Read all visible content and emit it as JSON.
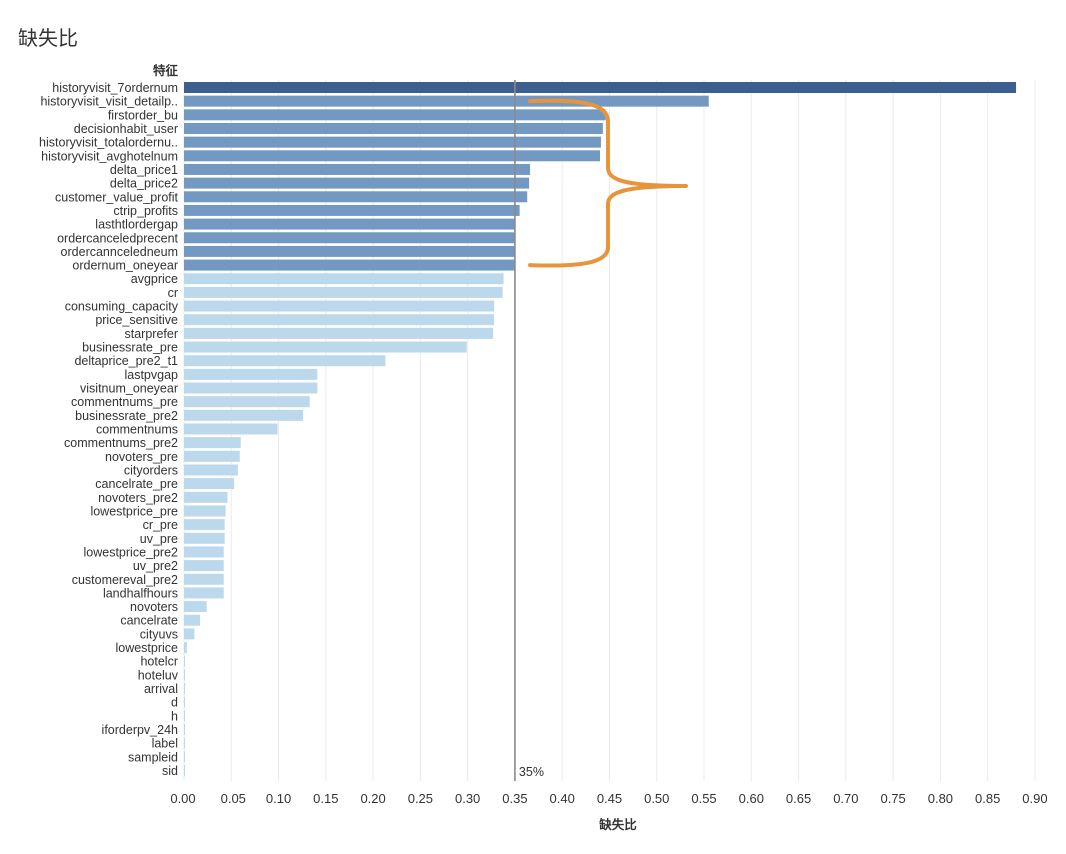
{
  "page_title": "缺失比",
  "colors": {
    "top_bar": "#3d5f8f",
    "high_bar": "#7399c3",
    "low_bar": "#bcd8ec",
    "grid": "#ececec",
    "ref_line": "#8a8a8a",
    "annotation": "#e8943a",
    "text": "#333333"
  },
  "chart_data": {
    "type": "bar",
    "orientation": "horizontal",
    "title": "缺失比",
    "ylabel": "特征",
    "xlabel": "缺失比",
    "xlim": [
      -0.02,
      0.92
    ],
    "xticks": [
      "0.00",
      "0.05",
      "0.10",
      "0.15",
      "0.20",
      "0.25",
      "0.30",
      "0.35",
      "0.40",
      "0.45",
      "0.50",
      "0.55",
      "0.60",
      "0.65",
      "0.70",
      "0.75",
      "0.80",
      "0.85",
      "0.90"
    ],
    "grid": true,
    "reference_line": {
      "value": 0.35,
      "label": "35%"
    },
    "annotation": {
      "type": "brace",
      "color": "orange",
      "from_category": "historyvisit_visit_detailp..",
      "to_category": "ordernum_oneyear"
    },
    "categories": [
      "historyvisit_7ordernum",
      "historyvisit_visit_detailp..",
      "firstorder_bu",
      "decisionhabit_user",
      "historyvisit_totalordernu..",
      "historyvisit_avghotelnum",
      "delta_price1",
      "delta_price2",
      "customer_value_profit",
      "ctrip_profits",
      "lasthtlordergap",
      "ordercanceledprecent",
      "ordercannceledneum",
      "ordernum_oneyear",
      "avgprice",
      "cr",
      "consuming_capacity",
      "price_sensitive",
      "starprefer",
      "businessrate_pre",
      "deltaprice_pre2_t1",
      "lastpvgap",
      "visitnum_oneyear",
      "commentnums_pre",
      "businessrate_pre2",
      "commentnums",
      "commentnums_pre2",
      "novoters_pre",
      "cityorders",
      "cancelrate_pre",
      "novoters_pre2",
      "lowestprice_pre",
      "cr_pre",
      "uv_pre",
      "lowestprice_pre2",
      "uv_pre2",
      "customereval_pre2",
      "landhalfhours",
      "novoters",
      "cancelrate",
      "cityuvs",
      "lowestprice",
      "hotelcr",
      "hoteluv",
      "arrival",
      "d",
      "h",
      "iforderpv_24h",
      "label",
      "sampleid",
      "sid"
    ],
    "values": [
      0.88,
      0.555,
      0.446,
      0.443,
      0.441,
      0.44,
      0.366,
      0.365,
      0.363,
      0.355,
      0.35,
      0.35,
      0.35,
      0.35,
      0.338,
      0.337,
      0.328,
      0.328,
      0.327,
      0.299,
      0.213,
      0.141,
      0.141,
      0.133,
      0.126,
      0.099,
      0.06,
      0.059,
      0.057,
      0.053,
      0.046,
      0.044,
      0.043,
      0.043,
      0.042,
      0.042,
      0.042,
      0.042,
      0.024,
      0.017,
      0.011,
      0.003,
      0.0005,
      0.0005,
      0.0005,
      0.0005,
      0.0005,
      0.0005,
      0.0005,
      0.0005,
      0.0005
    ],
    "bar_groups": [
      "top",
      "high",
      "high",
      "high",
      "high",
      "high",
      "high",
      "high",
      "high",
      "high",
      "high",
      "high",
      "high",
      "high",
      "low",
      "low",
      "low",
      "low",
      "low",
      "low",
      "low",
      "low",
      "low",
      "low",
      "low",
      "low",
      "low",
      "low",
      "low",
      "low",
      "low",
      "low",
      "low",
      "low",
      "low",
      "low",
      "low",
      "low",
      "low",
      "low",
      "low",
      "low",
      "low",
      "low",
      "low",
      "low",
      "low",
      "low",
      "low",
      "low",
      "low"
    ]
  }
}
